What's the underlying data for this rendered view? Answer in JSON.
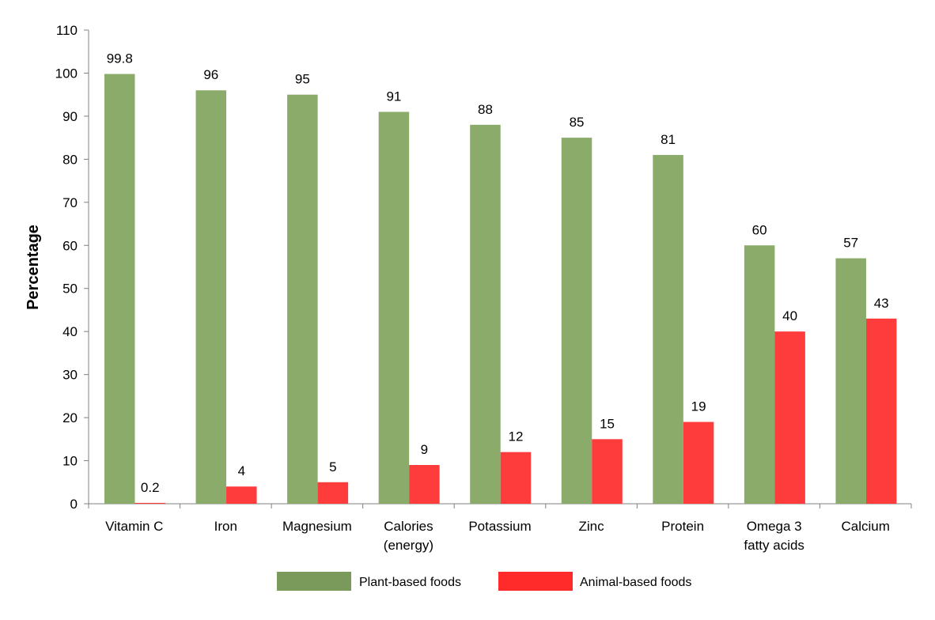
{
  "chart_data": {
    "type": "bar",
    "title": "",
    "xlabel": "",
    "ylabel": "Percentage",
    "ylim": [
      0,
      110
    ],
    "yticks": [
      "0",
      "10",
      "20",
      "30",
      "40",
      "50",
      "60",
      "70",
      "80",
      "90",
      "100",
      "110"
    ],
    "categories": [
      [
        "Vitamin C"
      ],
      [
        "Iron"
      ],
      [
        "Magnesium"
      ],
      [
        "Calories",
        "(energy)"
      ],
      [
        "Potassium"
      ],
      [
        "Zinc"
      ],
      [
        "Protein"
      ],
      [
        "Omega 3",
        "fatty acids"
      ],
      [
        "Calcium"
      ]
    ],
    "series": [
      {
        "name": "Plant-based foods",
        "color": "#8aab6a",
        "legend_color": "#7a9a5c",
        "values": [
          99.8,
          96,
          95,
          91,
          88,
          85,
          81,
          60,
          57
        ],
        "labels": [
          "99.8",
          "96",
          "95",
          "91",
          "88",
          "85",
          "81",
          "60",
          "57"
        ]
      },
      {
        "name": "Animal-based foods",
        "color": "#ff3c3c",
        "legend_color": "#ff2a2a",
        "values": [
          0.2,
          4,
          5,
          9,
          12,
          15,
          19,
          40,
          43
        ],
        "labels": [
          "0.2",
          "4",
          "5",
          "9",
          "12",
          "15",
          "19",
          "40",
          "43"
        ]
      }
    ],
    "grid": false,
    "legend_position": "bottom"
  }
}
